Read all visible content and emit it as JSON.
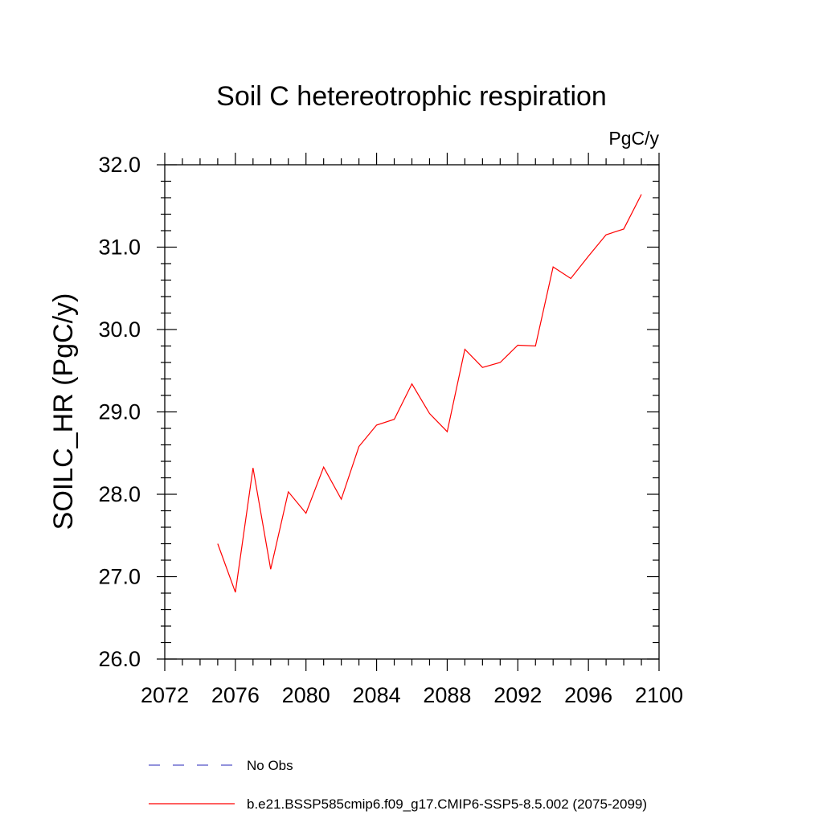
{
  "chart_data": {
    "type": "line",
    "title": "Soil C hetereotrophic respiration",
    "units_label": "PgC/y",
    "ylabel": "SOILC_HR  (PgC/y)",
    "xlim": [
      2072,
      2100
    ],
    "ylim": [
      26.0,
      32.0
    ],
    "x_ticks": [
      2072,
      2076,
      2080,
      2084,
      2088,
      2092,
      2096,
      2100
    ],
    "x_tick_labels": [
      "2072",
      "2076",
      "2080",
      "2084",
      "2088",
      "2092",
      "2096",
      "2100"
    ],
    "y_ticks": [
      26.0,
      27.0,
      28.0,
      29.0,
      30.0,
      31.0,
      32.0
    ],
    "y_tick_labels": [
      "26.0",
      "27.0",
      "28.0",
      "29.0",
      "30.0",
      "31.0",
      "32.0"
    ],
    "grid": false,
    "legend_placement": "bottom",
    "series": [
      {
        "name": "b.e21.BSSP585cmip6.f09_g17.CMIP6-SSP5-8.5.002 (2075-2099)",
        "color": "#ff0000",
        "style": "solid",
        "x": [
          2075,
          2076,
          2077,
          2078,
          2079,
          2080,
          2081,
          2082,
          2083,
          2084,
          2085,
          2086,
          2087,
          2088,
          2089,
          2090,
          2091,
          2092,
          2093,
          2094,
          2095,
          2096,
          2097,
          2098,
          2099
        ],
        "y": [
          27.4,
          26.81,
          28.32,
          27.09,
          28.03,
          27.77,
          28.33,
          27.94,
          28.58,
          28.84,
          28.91,
          29.34,
          28.98,
          28.76,
          29.76,
          29.54,
          29.6,
          29.81,
          29.8,
          30.76,
          30.62,
          30.89,
          31.15,
          31.22,
          31.64
        ]
      }
    ],
    "legend": [
      {
        "label": "No Obs",
        "color": "#5050c8",
        "style": "dashed"
      },
      {
        "label": "b.e21.BSSP585cmip6.f09_g17.CMIP6-SSP5-8.5.002 (2075-2099)",
        "color": "#ff0000",
        "style": "solid"
      }
    ]
  }
}
